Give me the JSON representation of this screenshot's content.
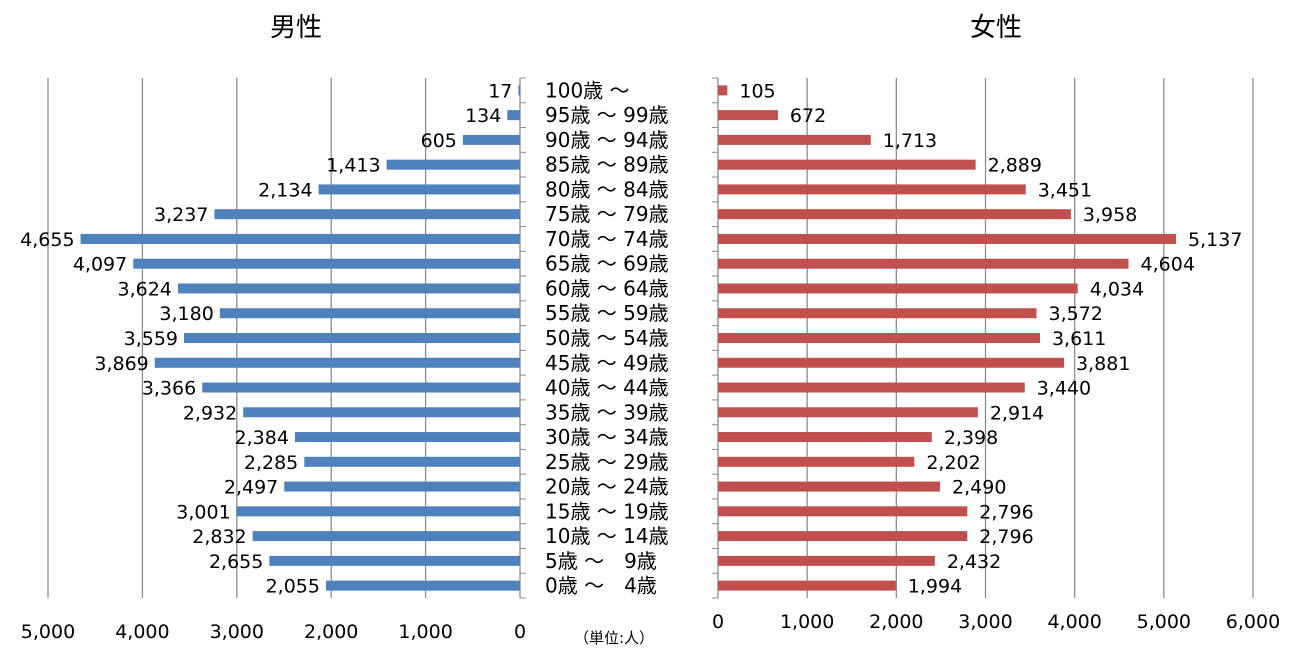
{
  "chart_data": {
    "type": "bar",
    "unit_label": "（単位:人）",
    "categories": [
      "100歳 〜",
      "95歳 〜 99歳",
      "90歳 〜 94歳",
      "85歳 〜 89歳",
      "80歳 〜 84歳",
      "75歳 〜 79歳",
      "70歳 〜 74歳",
      "65歳 〜 69歳",
      "60歳 〜 64歳",
      "55歳 〜 59歳",
      "50歳 〜 54歳",
      "45歳 〜 49歳",
      "40歳 〜 44歳",
      "35歳 〜 39歳",
      "30歳 〜 34歳",
      "25歳 〜 29歳",
      "20歳 〜 24歳",
      "15歳 〜 19歳",
      "10歳 〜 14歳",
      "5歳 〜　9歳",
      "0歳 〜　4歳"
    ],
    "series": [
      {
        "name": "男性",
        "color": "#4f81bd",
        "values": [
          17,
          134,
          605,
          1413,
          2134,
          3237,
          4655,
          4097,
          3624,
          3180,
          3559,
          3869,
          3366,
          2932,
          2384,
          2285,
          2497,
          3001,
          2832,
          2655,
          2055
        ],
        "labels": [
          "17",
          "134",
          "605",
          "1,413",
          "2,134",
          "3,237",
          "4,655",
          "4,097",
          "3,624",
          "3,180",
          "3,559",
          "3,869",
          "3,366",
          "2,932",
          "2,384",
          "2,285",
          "2,497",
          "3,001",
          "2,832",
          "2,655",
          "2,055"
        ],
        "xlim": [
          5000,
          0
        ],
        "ticks": [
          5000,
          4000,
          3000,
          2000,
          1000,
          0
        ],
        "tick_labels": [
          "5,000",
          "4,000",
          "3,000",
          "2,000",
          "1,000",
          "0"
        ]
      },
      {
        "name": "女性",
        "color": "#c0504d",
        "values": [
          105,
          672,
          1713,
          2889,
          3451,
          3958,
          5137,
          4604,
          4034,
          3572,
          3611,
          3881,
          3440,
          2914,
          2398,
          2202,
          2490,
          2796,
          2796,
          2432,
          1994
        ],
        "labels": [
          "105",
          "672",
          "1,713",
          "2,889",
          "3,451",
          "3,958",
          "5,137",
          "4,604",
          "4,034",
          "3,572",
          "3,611",
          "3,881",
          "3,440",
          "2,914",
          "2,398",
          "2,202",
          "2,490",
          "2,796",
          "2,796",
          "2,432",
          "1,994"
        ],
        "xlim": [
          0,
          6000
        ],
        "ticks": [
          0,
          1000,
          2000,
          3000,
          4000,
          5000,
          6000
        ],
        "tick_labels": [
          "0",
          "1,000",
          "2,000",
          "3,000",
          "4,000",
          "5,000",
          "6,000"
        ]
      }
    ],
    "grid": true
  }
}
